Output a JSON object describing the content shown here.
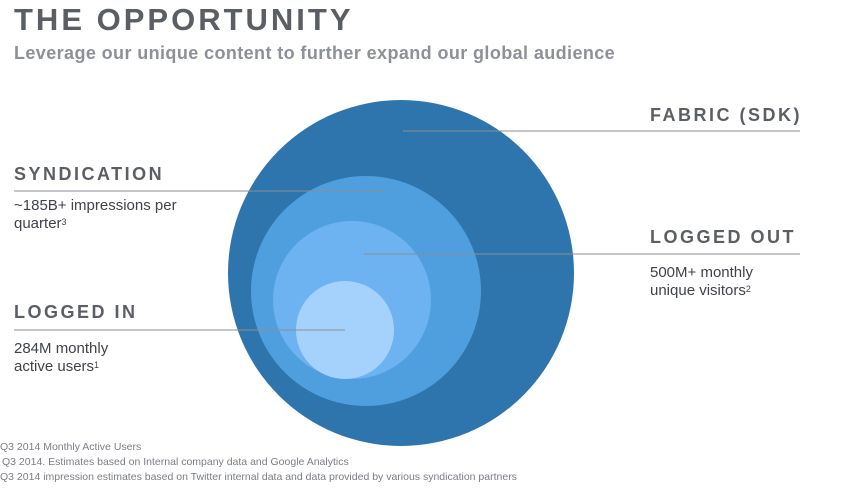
{
  "header": {
    "title": "THE OPPORTUNITY",
    "subtitle": "Leverage our unique content to further expand our global audience"
  },
  "segments": [
    {
      "label": "FABRIC (SDK)",
      "description_line1": "",
      "description_line2": "",
      "footnote_marker": "",
      "color": "#2f75ad"
    },
    {
      "label": "SYNDICATION",
      "description_line1": "~185B+ impressions per",
      "description_line2": "quarter",
      "footnote_marker": "3",
      "color": "#4f9fdf"
    },
    {
      "label": "LOGGED OUT",
      "description_line1": "500M+ monthly",
      "description_line2": "unique visitors",
      "footnote_marker": "2",
      "color": "#6eb3f1"
    },
    {
      "label": "LOGGED IN",
      "description_line1": "284M monthly",
      "description_line2": "active users",
      "footnote_marker": "1",
      "color": "#a5d2fc"
    }
  ],
  "leader_line_color": "#8a8e94",
  "footnotes": [
    "Q3 2014 Monthly Active Users",
    "Q3 2014. Estimates based on Internal company data and Google Analytics",
    "Q3 2014 impression estimates based on Twitter internal data and data provided by various syndication partners"
  ]
}
